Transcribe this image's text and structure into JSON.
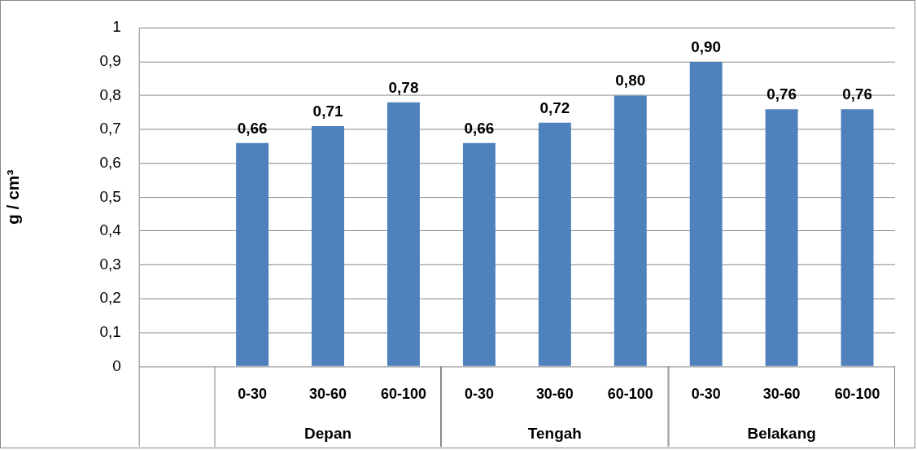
{
  "chart_data": {
    "type": "bar",
    "ylabel": "g / cm³",
    "categories": [
      null,
      "0-30",
      "30-60",
      "60-100",
      "0-30",
      "30-60",
      "60-100",
      "0-30",
      "30-60",
      "60-100"
    ],
    "values": [
      null,
      0.66,
      0.71,
      0.78,
      0.66,
      0.72,
      0.8,
      0.9,
      0.76,
      0.76
    ],
    "value_labels": [
      null,
      "0,66",
      "0,71",
      "0,78",
      "0,66",
      "0,72",
      "0,80",
      "0,90",
      "0,76",
      "0,76"
    ],
    "color": "#4f81bd",
    "ylim": [
      0,
      1
    ],
    "yticks": [
      0,
      {
        "value": 0.1,
        "label": "0,1"
      },
      {
        "value": 0.2,
        "label": "0,2"
      },
      {
        "value": 0.3,
        "label": "0,3"
      },
      {
        "value": 0.4,
        "label": "0,4"
      },
      {
        "value": 0.5,
        "label": "0,5"
      },
      {
        "value": 0.6,
        "label": "0,6"
      },
      {
        "value": 0.7,
        "label": "0,7"
      },
      {
        "value": 0.8,
        "label": "0,8"
      },
      {
        "value": 0.9,
        "label": "0,9"
      },
      1
    ],
    "grid": "y",
    "legend": false,
    "annotations": [
      "Depan",
      "Tengah",
      "Belakang"
    ]
  }
}
